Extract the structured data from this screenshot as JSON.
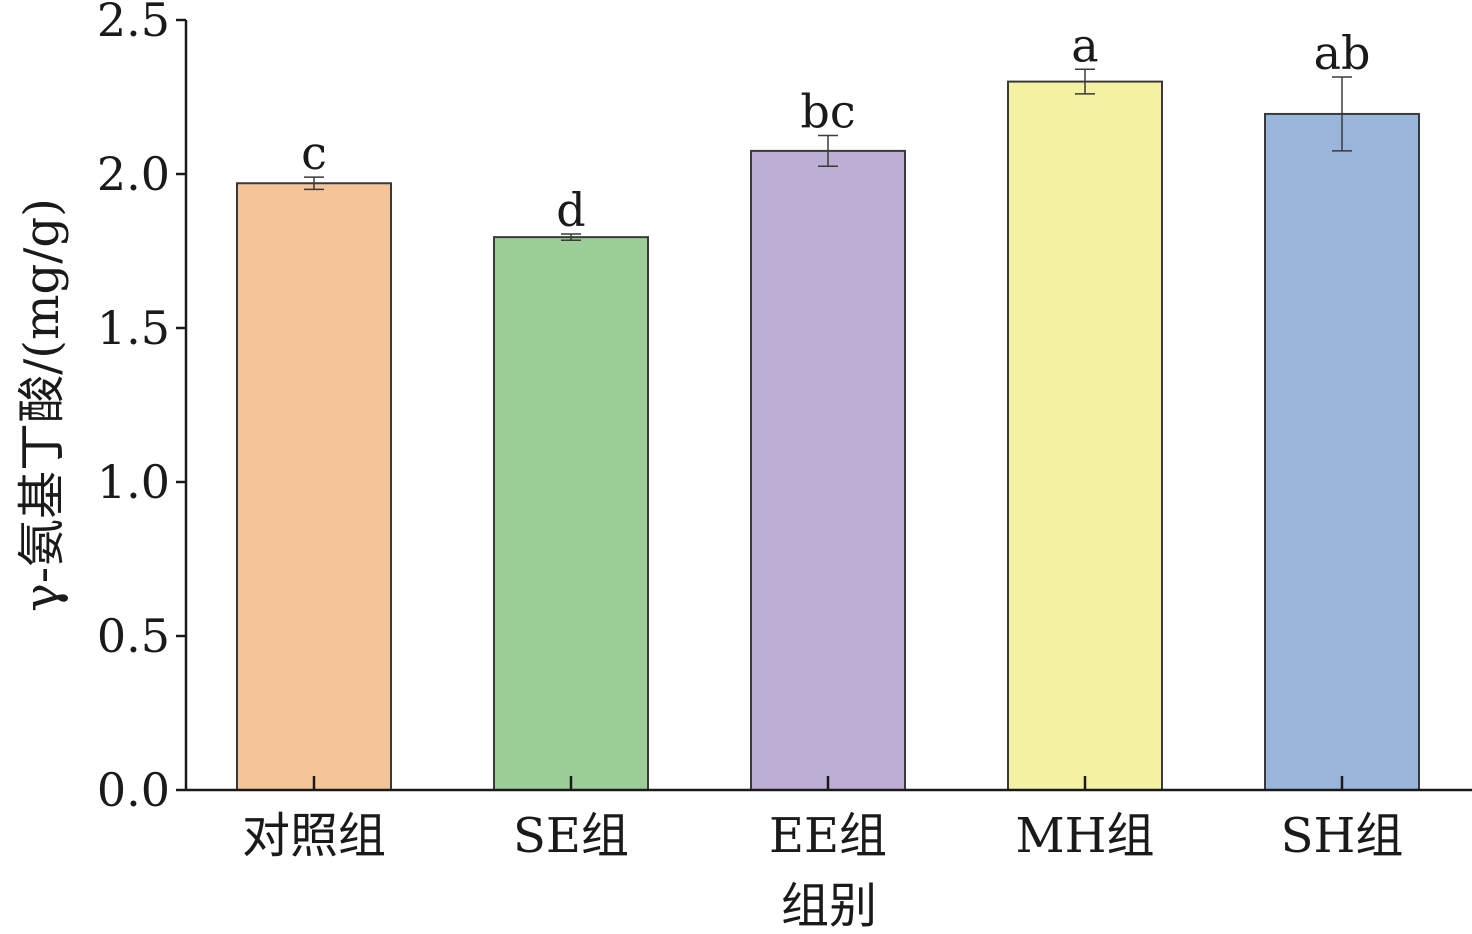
{
  "chart_data": {
    "type": "bar",
    "title": "",
    "xlabel": "组别",
    "ylabel": "γ-氨基丁酸/(mg/g)",
    "categories": [
      "对照组",
      "SE组",
      "EE组",
      "MH组",
      "SH组"
    ],
    "values": [
      1.97,
      1.795,
      2.075,
      2.3,
      2.195
    ],
    "errors": [
      0.02,
      0.01,
      0.05,
      0.04,
      0.12
    ],
    "significance_labels": [
      "c",
      "d",
      "bc",
      "a",
      "ab"
    ],
    "colors": [
      "#f5c498",
      "#9bcf97",
      "#bdaed3",
      "#f4f1a3",
      "#9ab5dc"
    ],
    "ylim": [
      0,
      2.5
    ],
    "yticks": [
      "0.0",
      "0.5",
      "1.0",
      "1.5",
      "2.0",
      "2.5"
    ],
    "grid": false,
    "legend": "none"
  }
}
